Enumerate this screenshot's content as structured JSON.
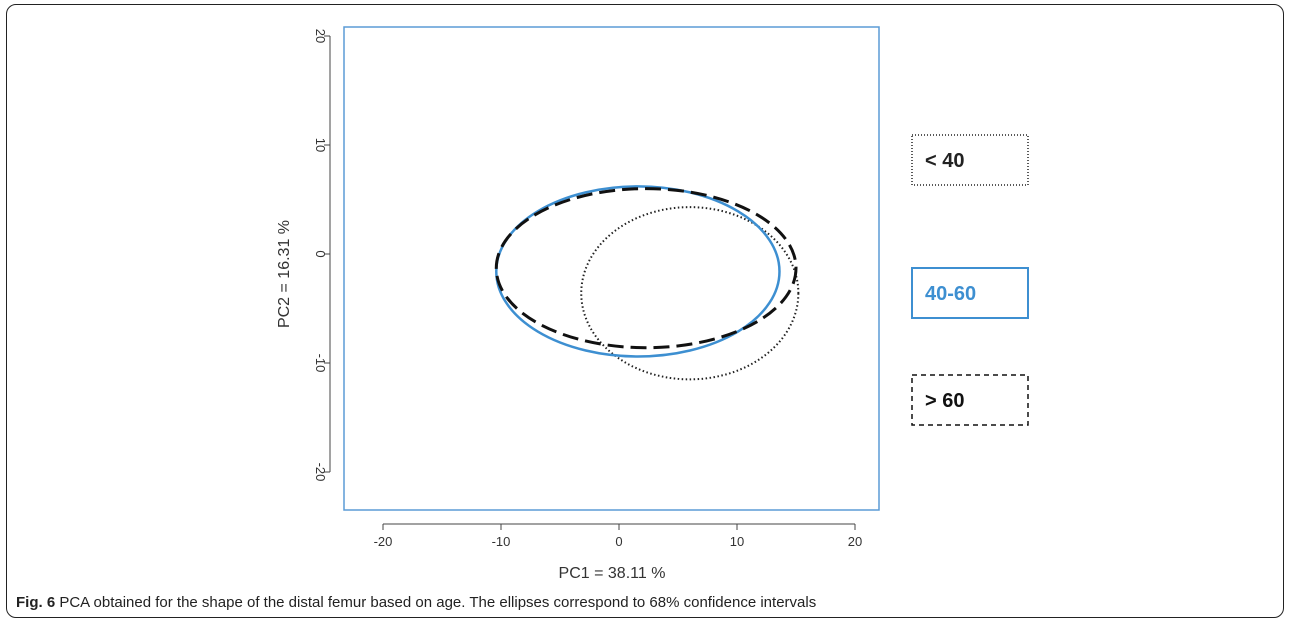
{
  "chart_data": {
    "type": "scatter",
    "xlabel": "PC1 = 38.11 %",
    "ylabel": "PC2 = 16.31 %",
    "xlim": [
      -22,
      22
    ],
    "ylim": [
      -22,
      21
    ],
    "x_ticks": [
      -20,
      -10,
      0,
      10,
      20
    ],
    "y_ticks": [
      -20,
      -10,
      0,
      10,
      20
    ],
    "x_tick_labels": [
      "-20",
      "-10",
      "0",
      "10",
      "20"
    ],
    "y_tick_labels": [
      "-20",
      "-10",
      "0",
      "10",
      "20"
    ],
    "series": [
      {
        "name": "< 40",
        "shape": "ellipse",
        "line_style": "dotted",
        "color": "#222222",
        "center": [
          6.0,
          -3.6
        ],
        "radius_x": 9.2,
        "radius_y": 7.9
      },
      {
        "name": "40-60",
        "shape": "ellipse",
        "line_style": "solid",
        "color": "#3d8fd1",
        "center": [
          1.6,
          -1.6
        ],
        "radius_x": 12.0,
        "radius_y": 7.8
      },
      {
        "name": "> 60",
        "shape": "ellipse",
        "line_style": "dashed",
        "color": "#111111",
        "center": [
          2.3,
          -1.3
        ],
        "radius_x": 12.7,
        "radius_y": 7.3
      }
    ],
    "legend_position": "right"
  },
  "caption": {
    "label": "Fig. 6",
    "text": " PCA obtained for the shape of the distal femur based on age. The ellipses correspond to 68% confidence intervals"
  }
}
